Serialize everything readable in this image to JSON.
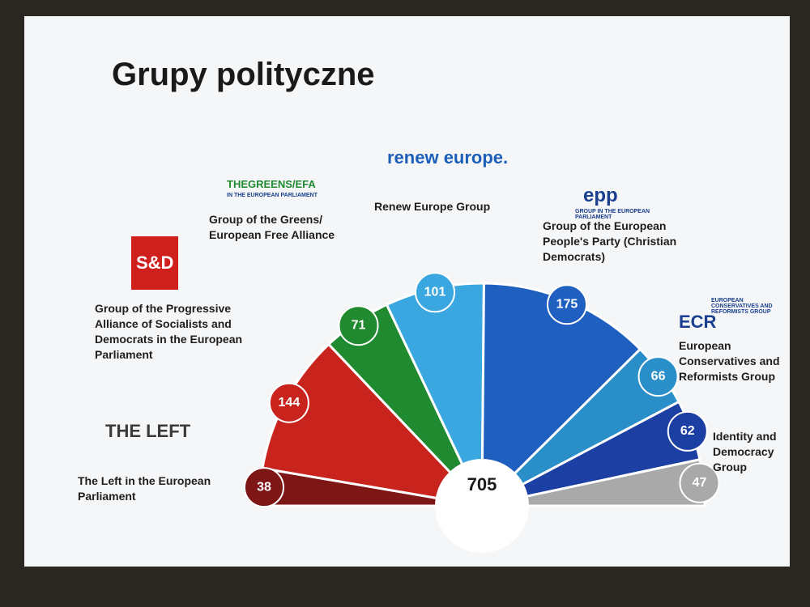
{
  "title": "Grupy polityczne",
  "chart_data": {
    "type": "parliament",
    "total": 705,
    "categories": [
      "The Left in the European Parliament",
      "Group of the Progressive Alliance of Socialists and Democrats in the European Parliament",
      "Group of the Greens/ European Free Alliance",
      "Renew Europe Group",
      "Group of the European People's Party (Christian Democrats)",
      "European Conservatives and Reformists Group",
      "Identity and Democracy Group",
      null
    ],
    "values": [
      38,
      144,
      71,
      101,
      175,
      66,
      62,
      47
    ],
    "colors": [
      "#7e1616",
      "#c9231e",
      "#1f8a2f",
      "#3ba7e0",
      "#1f5fc0",
      "#2a8fc9",
      "#1b3fa3",
      "#a9a9a9"
    ],
    "logos": [
      "THE LEFT",
      "S&D",
      "THEGREENS/EFA",
      "renew europe.",
      "epp",
      "ECR",
      null,
      null
    ],
    "logo_notes": [
      null,
      null,
      "in the European Parliament",
      null,
      "group in the european parliament",
      "EUROPEAN CONSERVATIVES AND REFORMISTS GROUP",
      null,
      null
    ]
  }
}
